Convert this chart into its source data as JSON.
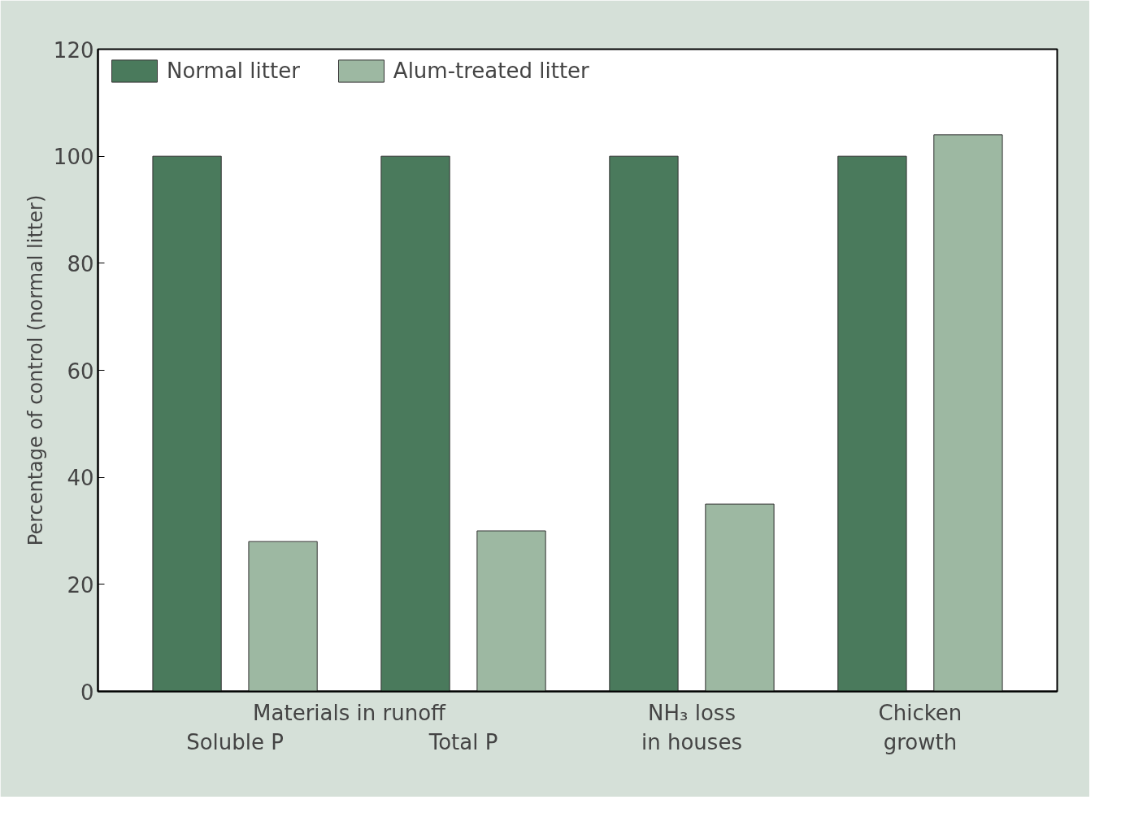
{
  "chart_data": {
    "type": "bar",
    "ylabel": "Percentage of control (normal litter)",
    "categories": [
      "Soluble P",
      "Total P",
      "NH₃ loss\nin houses",
      "Chicken\ngrowth"
    ],
    "series": [
      {
        "name": "Normal litter",
        "color": "#4a7a5c",
        "values": [
          100,
          100,
          100,
          100
        ]
      },
      {
        "name": "Alum-treated litter",
        "color": "#9db8a2",
        "values": [
          28,
          30,
          35,
          104
        ]
      }
    ],
    "annotations": [
      "Materials in runoff"
    ],
    "ylim": [
      0,
      120
    ],
    "yticks": [
      0,
      20,
      40,
      60,
      80,
      100,
      120
    ],
    "grid": false,
    "legend": "top left"
  }
}
